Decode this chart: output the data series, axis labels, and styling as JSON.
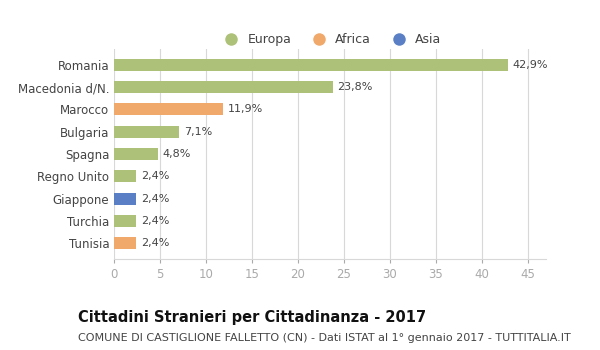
{
  "categories": [
    "Romania",
    "Macedonia d/N.",
    "Marocco",
    "Bulgaria",
    "Spagna",
    "Regno Unito",
    "Giappone",
    "Turchia",
    "Tunisia"
  ],
  "values": [
    42.9,
    23.8,
    11.9,
    7.1,
    4.8,
    2.4,
    2.4,
    2.4,
    2.4
  ],
  "labels": [
    "42,9%",
    "23,8%",
    "11,9%",
    "7,1%",
    "4,8%",
    "2,4%",
    "2,4%",
    "2,4%",
    "2,4%"
  ],
  "colors": [
    "#adc178",
    "#adc178",
    "#f0a86b",
    "#adc178",
    "#adc178",
    "#adc178",
    "#5b7fc4",
    "#adc178",
    "#f0a86b"
  ],
  "continents": [
    "Europa",
    "Europa",
    "Africa",
    "Europa",
    "Europa",
    "Europa",
    "Asia",
    "Europa",
    "Africa"
  ],
  "legend_labels": [
    "Europa",
    "Africa",
    "Asia"
  ],
  "legend_colors": [
    "#adc178",
    "#f0a86b",
    "#5b7fc4"
  ],
  "title": "Cittadini Stranieri per Cittadinanza - 2017",
  "subtitle": "COMUNE DI CASTIGLIONE FALLETTO (CN) - Dati ISTAT al 1° gennaio 2017 - TUTTITALIA.IT",
  "xlim": [
    0,
    47
  ],
  "xticks": [
    0,
    5,
    10,
    15,
    20,
    25,
    30,
    35,
    40,
    45
  ],
  "background_color": "#ffffff",
  "grid_color": "#d8d8d8",
  "bar_height": 0.55,
  "title_fontsize": 10.5,
  "subtitle_fontsize": 8,
  "tick_fontsize": 8.5,
  "label_fontsize": 8,
  "legend_fontsize": 9
}
